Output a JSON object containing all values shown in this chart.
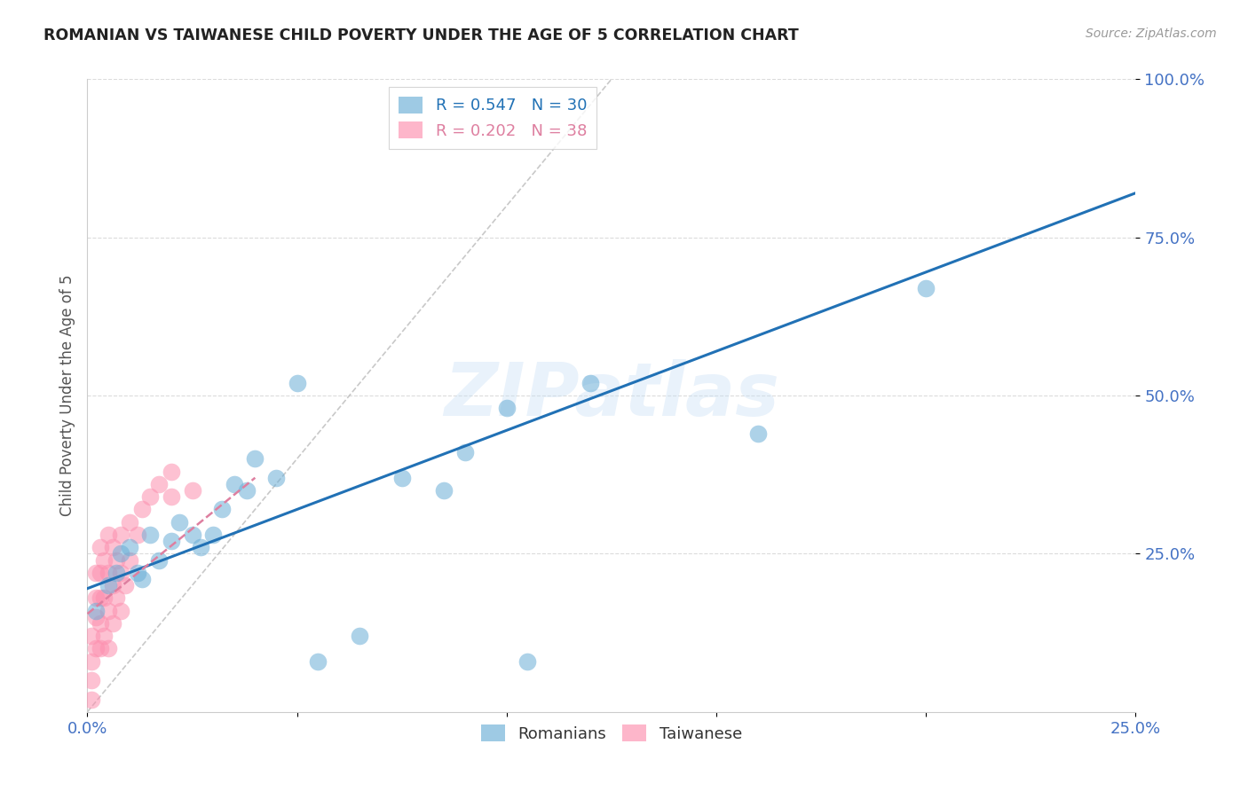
{
  "title": "ROMANIAN VS TAIWANESE CHILD POVERTY UNDER THE AGE OF 5 CORRELATION CHART",
  "source": "Source: ZipAtlas.com",
  "ylabel_label": "Child Poverty Under the Age of 5",
  "xlim": [
    0.0,
    0.25
  ],
  "ylim": [
    0.0,
    1.0
  ],
  "xticks": [
    0.0,
    0.05,
    0.1,
    0.15,
    0.2,
    0.25
  ],
  "yticks": [
    0.25,
    0.5,
    0.75,
    1.0
  ],
  "xtick_labels": [
    "0.0%",
    "",
    "",
    "",
    "",
    "25.0%"
  ],
  "ytick_labels": [
    "25.0%",
    "50.0%",
    "75.0%",
    "100.0%"
  ],
  "romanian_R": 0.547,
  "romanian_N": 30,
  "taiwanese_R": 0.202,
  "taiwanese_N": 38,
  "romanian_color": "#6baed6",
  "taiwanese_color": "#fc8fae",
  "romanian_line_color": "#2171b5",
  "taiwanese_line_color": "#de7fa0",
  "grid_color": "#cccccc",
  "background_color": "#ffffff",
  "watermark": "ZIPatlas",
  "romanians_x": [
    0.002,
    0.005,
    0.007,
    0.008,
    0.01,
    0.012,
    0.013,
    0.015,
    0.017,
    0.02,
    0.022,
    0.025,
    0.027,
    0.03,
    0.032,
    0.035,
    0.038,
    0.04,
    0.045,
    0.05,
    0.055,
    0.065,
    0.075,
    0.085,
    0.09,
    0.1,
    0.105,
    0.12,
    0.16,
    0.2
  ],
  "romanians_y": [
    0.16,
    0.2,
    0.22,
    0.25,
    0.26,
    0.22,
    0.21,
    0.28,
    0.24,
    0.27,
    0.3,
    0.28,
    0.26,
    0.28,
    0.32,
    0.36,
    0.35,
    0.4,
    0.37,
    0.52,
    0.08,
    0.12,
    0.37,
    0.35,
    0.41,
    0.48,
    0.08,
    0.52,
    0.44,
    0.67
  ],
  "taiwanese_x": [
    0.001,
    0.001,
    0.001,
    0.001,
    0.002,
    0.002,
    0.002,
    0.002,
    0.003,
    0.003,
    0.003,
    0.003,
    0.003,
    0.004,
    0.004,
    0.004,
    0.005,
    0.005,
    0.005,
    0.005,
    0.006,
    0.006,
    0.006,
    0.007,
    0.007,
    0.008,
    0.008,
    0.008,
    0.009,
    0.01,
    0.01,
    0.012,
    0.013,
    0.015,
    0.017,
    0.02,
    0.02,
    0.025
  ],
  "taiwanese_y": [
    0.02,
    0.05,
    0.08,
    0.12,
    0.1,
    0.15,
    0.18,
    0.22,
    0.1,
    0.14,
    0.18,
    0.22,
    0.26,
    0.12,
    0.18,
    0.24,
    0.1,
    0.16,
    0.22,
    0.28,
    0.14,
    0.2,
    0.26,
    0.18,
    0.24,
    0.16,
    0.22,
    0.28,
    0.2,
    0.24,
    0.3,
    0.28,
    0.32,
    0.34,
    0.36,
    0.34,
    0.38,
    0.35
  ],
  "ref_line_x": [
    0.0,
    0.125
  ],
  "ref_line_y": [
    0.0,
    1.0
  ]
}
